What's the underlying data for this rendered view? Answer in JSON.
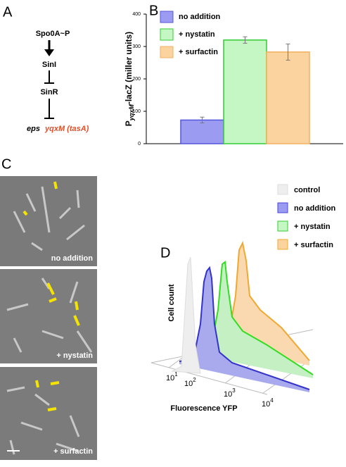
{
  "panel_a": {
    "letter": "A",
    "nodes": [
      "Spo0A~P",
      "SinI",
      "SinR"
    ],
    "target_left": "eps",
    "target_right": "yqxM (tasA)"
  },
  "chart_data": {
    "type": "bar",
    "letter": "B",
    "categories": [
      null
    ],
    "y_label": {
      "main": "P",
      "sub": "yqxM",
      "rest": "-lacZ (miller units)"
    },
    "series": [
      {
        "name": "no addition",
        "color": "#9b9bf2",
        "edge": "#5555dd",
        "values": [
          73
        ],
        "errors": [
          9
        ]
      },
      {
        "name": "+ nystatin",
        "color": "#c4f7c4",
        "edge": "#33cc33",
        "values": [
          320
        ],
        "errors": [
          10
        ]
      },
      {
        "name": "+ surfactin",
        "color": "#fbd39e",
        "edge": "#f0b060",
        "values": [
          283
        ],
        "errors": [
          25
        ]
      }
    ],
    "ylim": [
      0,
      400
    ],
    "yticks": [
      0,
      100,
      200,
      300,
      400
    ],
    "grid": false,
    "legend": "top-left"
  },
  "panel_c": {
    "letter": "C",
    "captions": [
      "no addition",
      "+ nystatin",
      "+ surfactin"
    ]
  },
  "panel_d": {
    "letter": "D",
    "legend": [
      "control",
      "no addition",
      "+ nystatin",
      "+ surfactin"
    ],
    "y_label": "Cell count",
    "x_label": "Fluorescence YFP",
    "ticks": [
      {
        "base": "10",
        "exp": "1"
      },
      {
        "base": "10",
        "exp": "2"
      },
      {
        "base": "10",
        "exp": "3"
      },
      {
        "base": "10",
        "exp": "4"
      }
    ]
  }
}
